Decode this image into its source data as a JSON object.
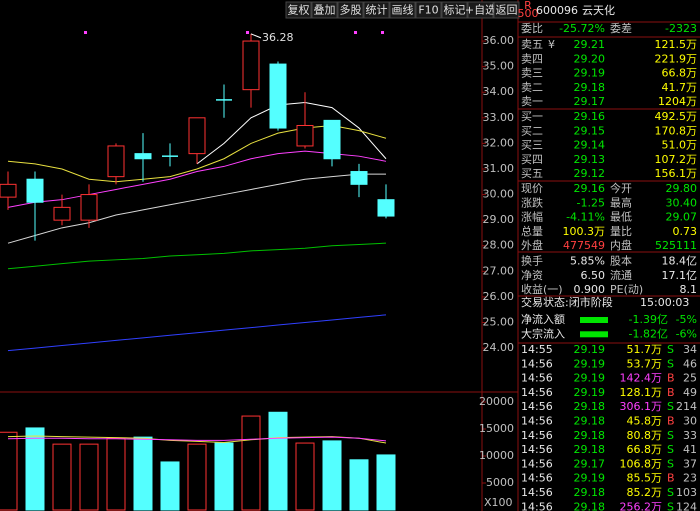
{
  "toolbar": [
    "复权",
    "叠加",
    "多股",
    "统计",
    "画线",
    "F10",
    "标记",
    "+自选",
    "返回"
  ],
  "chart_data": [
    {
      "type": "candlestick",
      "annotation": "36.28",
      "open": [
        29.9,
        30.6,
        29.0,
        29.0,
        30.7,
        31.6,
        31.5,
        31.6,
        33.7,
        34.1,
        35.1,
        31.9,
        32.9,
        30.9,
        29.8
      ],
      "high": [
        30.9,
        30.9,
        30.0,
        30.4,
        32.0,
        32.4,
        32.0,
        33.0,
        34.3,
        36.28,
        35.2,
        34.0,
        32.9,
        31.2,
        30.4
      ],
      "low": [
        29.4,
        28.2,
        28.8,
        28.7,
        30.4,
        30.5,
        31.1,
        31.2,
        33.0,
        33.4,
        32.5,
        31.8,
        31.1,
        29.9,
        29.07
      ],
      "close": [
        30.4,
        29.7,
        29.5,
        30.0,
        31.9,
        31.4,
        31.5,
        33.0,
        33.7,
        36.0,
        32.6,
        32.7,
        31.4,
        30.4,
        29.16
      ],
      "up_color": "#ff3232",
      "down_color": "#54ffff",
      "series": [
        {
          "color": "#ffffff",
          "values": [
            null,
            null,
            null,
            null,
            null,
            null,
            null,
            31.2,
            32.0,
            33.0,
            33.5,
            33.6,
            33.4,
            32.6,
            31.4
          ]
        },
        {
          "color": "#e8e040",
          "values": [
            31.3,
            31.2,
            31.0,
            30.6,
            30.5,
            30.6,
            30.7,
            31.0,
            31.4,
            32.0,
            32.4,
            32.6,
            32.7,
            32.5,
            32.2
          ]
        },
        {
          "color": "#ff40ff",
          "values": [
            29.5,
            29.7,
            29.8,
            30.0,
            30.2,
            30.4,
            30.6,
            30.9,
            31.1,
            31.4,
            31.6,
            31.7,
            31.6,
            31.5,
            31.3
          ]
        },
        {
          "color": "#d8d8d8",
          "values": [
            28.1,
            28.4,
            28.7,
            28.9,
            29.2,
            29.4,
            29.6,
            29.8,
            30.0,
            30.2,
            30.4,
            30.6,
            30.7,
            30.8,
            30.8
          ]
        },
        {
          "color": "#00c000",
          "values": [
            27.1,
            27.2,
            27.3,
            27.4,
            27.45,
            27.5,
            27.6,
            27.65,
            27.7,
            27.8,
            27.85,
            27.9,
            28.0,
            28.05,
            28.1
          ]
        },
        {
          "color": "#3040ff",
          "values": [
            23.9,
            24.0,
            24.1,
            24.2,
            24.3,
            24.4,
            24.5,
            24.6,
            24.7,
            24.8,
            24.9,
            25.0,
            25.1,
            25.2,
            25.3
          ]
        }
      ],
      "ylim": [
        22.44,
        36.51
      ],
      "yticks": [
        {
          "value": 24,
          "label": "24.00"
        },
        {
          "value": 25,
          "label": "25.00"
        },
        {
          "value": 26,
          "label": "26.00"
        },
        {
          "value": 27,
          "label": "27.00"
        },
        {
          "value": 28,
          "label": "28.00"
        },
        {
          "value": 29,
          "label": "29.00"
        },
        {
          "value": 30,
          "label": "30.00"
        },
        {
          "value": 31,
          "label": "31.00"
        },
        {
          "value": 32,
          "label": "32.00"
        },
        {
          "value": 33,
          "label": "33.00"
        },
        {
          "value": 34,
          "label": "34.00"
        },
        {
          "value": 35,
          "label": "35.00"
        },
        {
          "value": 36,
          "label": "36.00"
        }
      ]
    },
    {
      "type": "bar",
      "unit_label": "X100",
      "values": [
        14400,
        15200,
        12200,
        12200,
        13300,
        13500,
        8900,
        12200,
        12400,
        17400,
        18100,
        12400,
        12800,
        9300,
        10200
      ],
      "series": [
        {
          "color": "#e8e040",
          "values": [
            13600,
            13700,
            13600,
            13500,
            13400,
            13300,
            12900,
            12700,
            12500,
            13000,
            13400,
            13500,
            13600,
            13300,
            12400
          ]
        },
        {
          "color": "#ff40ff",
          "values": [
            13200,
            13300,
            13300,
            13200,
            13200,
            13100,
            13000,
            12900,
            12900,
            13100,
            13300,
            13400,
            13500,
            13300,
            12800
          ]
        }
      ],
      "ylim": [
        0,
        21300
      ],
      "yticks": [
        5000,
        10000,
        15000,
        20000
      ]
    }
  ],
  "quote": {
    "badge_top": "R",
    "badge_bottom": "500",
    "code": "600096",
    "name": "云天化",
    "ratio_label": "委比",
    "ratio": "-25.72%",
    "diff_label": "委差",
    "diff": "-2323",
    "ask_note": "¥",
    "asks": [
      [
        "卖五",
        "29.21",
        "121.5万"
      ],
      [
        "卖四",
        "29.20",
        "221.9万"
      ],
      [
        "卖三",
        "29.19",
        "66.8万"
      ],
      [
        "卖二",
        "29.18",
        "41.7万"
      ],
      [
        "卖一",
        "29.17",
        "1204万"
      ]
    ],
    "bids": [
      [
        "买一",
        "29.16",
        "492.5万"
      ],
      [
        "买二",
        "29.15",
        "170.8万"
      ],
      [
        "买三",
        "29.14",
        "51.0万"
      ],
      [
        "买四",
        "29.13",
        "107.2万"
      ],
      [
        "买五",
        "29.12",
        "156.1万"
      ]
    ],
    "stats": [
      [
        "现价",
        "29.16",
        "今开",
        "29.80"
      ],
      [
        "涨跌",
        "-1.25",
        "最高",
        "30.40"
      ],
      [
        "涨幅",
        "-4.11%",
        "最低",
        "29.07"
      ],
      [
        "总量",
        "100.3万",
        "量比",
        "0.73"
      ],
      [
        "外盘",
        "477549",
        "内盘",
        "525111"
      ],
      [
        "换手",
        "5.85%",
        "股本",
        "18.4亿"
      ],
      [
        "净资",
        "6.50",
        "流通",
        "17.1亿"
      ],
      [
        "收益(一)",
        "0.900",
        "PE(动)",
        "8.1"
      ]
    ],
    "status": "交易状态:闭市阶段",
    "status_time": "15:00:03",
    "flows": [
      [
        "净流入额",
        "-1.39亿",
        "-5%"
      ],
      [
        "大宗流入",
        "-1.82亿",
        "-6%"
      ]
    ],
    "trades": [
      [
        "14:55",
        "29.19",
        "51.7万",
        "S",
        "34"
      ],
      [
        "14:56",
        "29.19",
        "53.7万",
        "S",
        "46"
      ],
      [
        "14:56",
        "29.19",
        "142.4万",
        "B",
        "25"
      ],
      [
        "14:56",
        "29.19",
        "128.1万",
        "B",
        "49"
      ],
      [
        "14:56",
        "29.18",
        "306.1万",
        "S",
        "214"
      ],
      [
        "14:56",
        "29.18",
        "45.8万",
        "B",
        "30"
      ],
      [
        "14:56",
        "29.18",
        "80.8万",
        "S",
        "33"
      ],
      [
        "14:56",
        "29.18",
        "66.8万",
        "S",
        "41"
      ],
      [
        "14:56",
        "29.17",
        "106.8万",
        "S",
        "37"
      ],
      [
        "14:56",
        "29.19",
        "85.5万",
        "B",
        "23"
      ],
      [
        "14:56",
        "29.18",
        "85.2万",
        "S",
        "103"
      ],
      [
        "14:56",
        "29.18",
        "256.2万",
        "S",
        "124"
      ]
    ]
  }
}
